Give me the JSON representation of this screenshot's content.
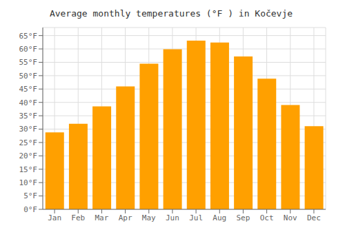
{
  "chart_data": {
    "type": "bar",
    "title": "Average monthly temperatures (°F ) in Kočevje",
    "categories": [
      "Jan",
      "Feb",
      "Mar",
      "Apr",
      "May",
      "Jun",
      "Jul",
      "Aug",
      "Sep",
      "Oct",
      "Nov",
      "Dec"
    ],
    "values": [
      28.8,
      32.0,
      38.5,
      46.0,
      54.5,
      59.9,
      63.1,
      62.4,
      57.2,
      48.9,
      39.0,
      31.1
    ],
    "color": "#FFA000",
    "ylim": [
      0,
      68
    ],
    "yticks": [
      {
        "value": 0,
        "label": "0°F"
      },
      {
        "value": 5,
        "label": "5°F"
      },
      {
        "value": 10,
        "label": "10°F"
      },
      {
        "value": 15,
        "label": "15°F"
      },
      {
        "value": 20,
        "label": "20°F"
      },
      {
        "value": 25,
        "label": "25°F"
      },
      {
        "value": 30,
        "label": "30°F"
      },
      {
        "value": 35,
        "label": "35°F"
      },
      {
        "value": 40,
        "label": "40°F"
      },
      {
        "value": 45,
        "label": "45°F"
      },
      {
        "value": 50,
        "label": "50°F"
      },
      {
        "value": 55,
        "label": "55°F"
      },
      {
        "value": 60,
        "label": "60°F"
      },
      {
        "value": 65,
        "label": "65°F"
      }
    ],
    "grid": true
  }
}
